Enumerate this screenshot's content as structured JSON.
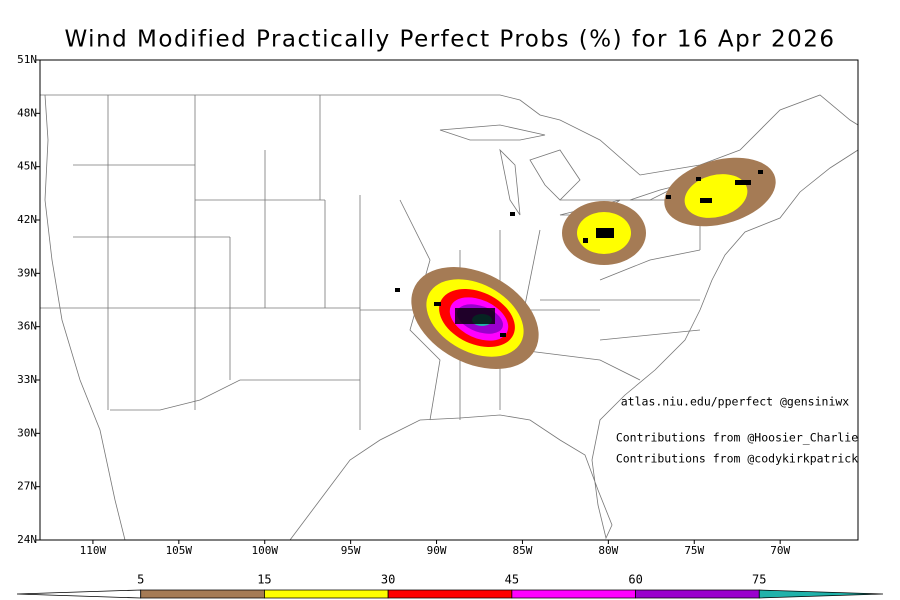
{
  "map": {
    "title": "Wind Modified Practically Perfect Probs (%) for 16 Apr 2026",
    "lon_range": [
      -113.08,
      -65.47
    ],
    "lat_range": [
      24,
      51
    ],
    "lat_ticks": [
      {
        "value": 51,
        "label": "51N"
      },
      {
        "value": 48,
        "label": "48N"
      },
      {
        "value": 45,
        "label": "45N"
      },
      {
        "value": 42,
        "label": "42N"
      },
      {
        "value": 39,
        "label": "39N"
      },
      {
        "value": 36,
        "label": "36N"
      },
      {
        "value": 33,
        "label": "33N"
      },
      {
        "value": 30,
        "label": "30N"
      },
      {
        "value": 27,
        "label": "27N"
      },
      {
        "value": 24,
        "label": "24N"
      }
    ],
    "lon_ticks": [
      {
        "value": -110,
        "label": "110W"
      },
      {
        "value": -105,
        "label": "105W"
      },
      {
        "value": -100,
        "label": "100W"
      },
      {
        "value": -95,
        "label": "95W"
      },
      {
        "value": -90,
        "label": "90W"
      },
      {
        "value": -85,
        "label": "85W"
      },
      {
        "value": -80,
        "label": "80W"
      },
      {
        "value": -75,
        "label": "75W"
      },
      {
        "value": -70,
        "label": "70W"
      }
    ],
    "annotations": [
      "atlas.niu.edu/pperfect @gensiniwx",
      "Contributions from @Hoosier_Charlie",
      "Contributions from @codykirkpatrick"
    ],
    "colorbar": {
      "levels": [
        5,
        15,
        30,
        45,
        60,
        75
      ],
      "colors": [
        "#ffffff",
        "#a57b55",
        "#ffff00",
        "#ff0000",
        "#ff00ff",
        "#9a00cd",
        "#20b2aa"
      ]
    }
  }
}
